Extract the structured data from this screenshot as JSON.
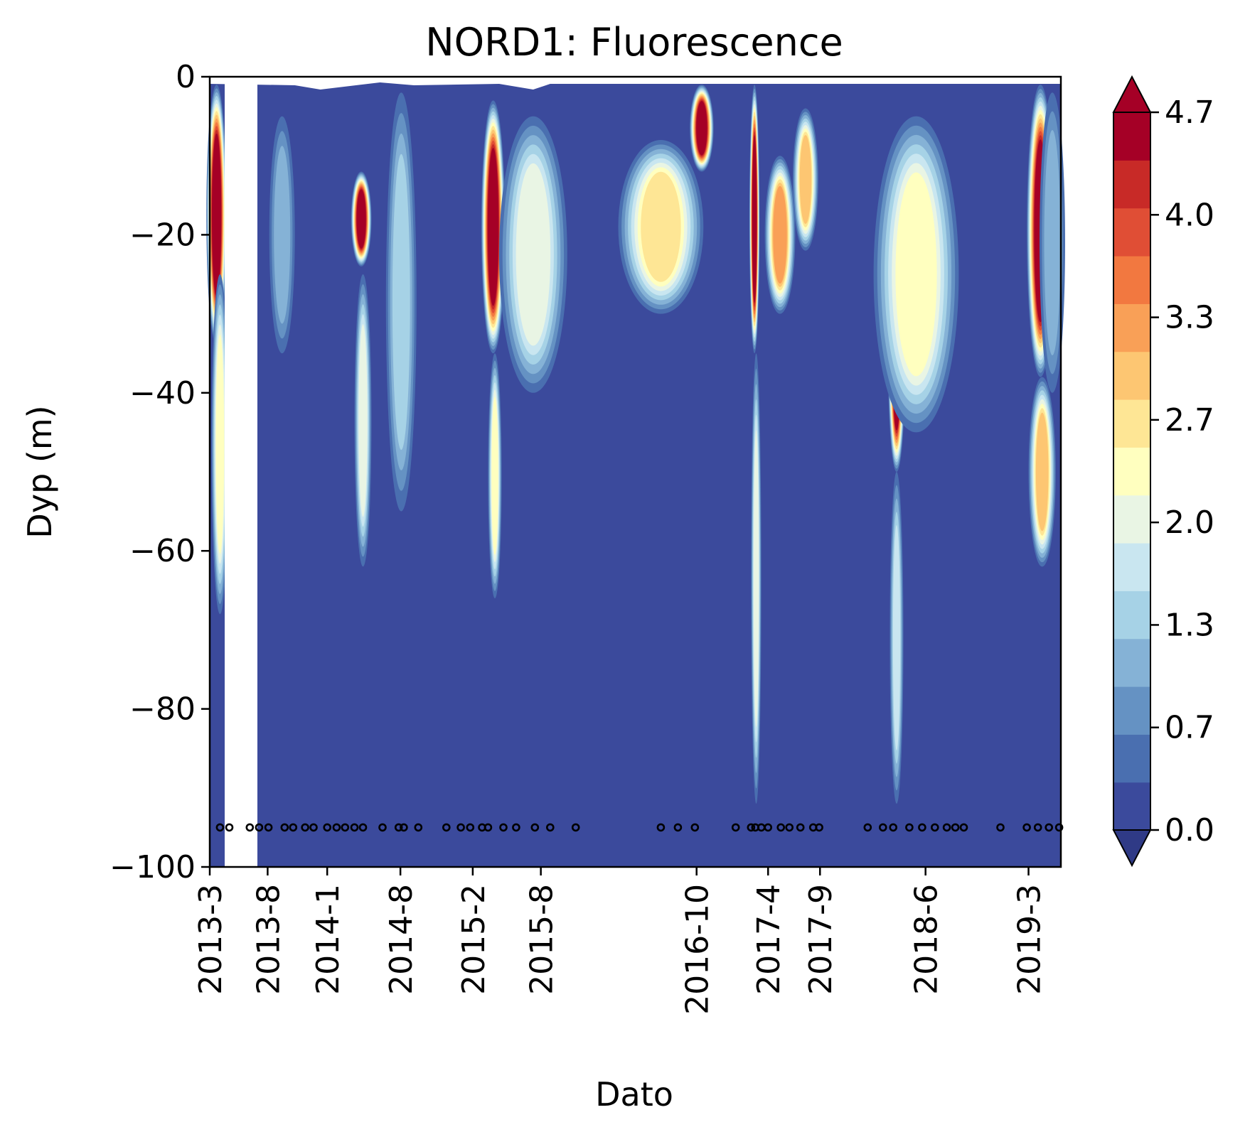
{
  "chart_data": {
    "type": "heatmap",
    "title": "NORD1: Fluorescence",
    "xlabel": "Dato",
    "ylabel": "Dyp (m)",
    "ylim": [
      -100,
      0
    ],
    "y_ticks": [
      0,
      -20,
      -40,
      -60,
      -80,
      -100
    ],
    "x_tick_labels": [
      "2013-3",
      "2013-8",
      "2014-1",
      "2014-8",
      "2015-2",
      "2015-8",
      "2016-10",
      "2017-4",
      "2017-9",
      "2018-6",
      "2019-3"
    ],
    "colorbar": {
      "min": 0.0,
      "max": 4.7,
      "tick_labels": [
        "4.7",
        "4.0",
        "3.3",
        "2.7",
        "2.0",
        "1.3",
        "0.7",
        "0.0"
      ],
      "levels": 15,
      "extend": "both",
      "colormap": "RdYlBu_r",
      "colors": [
        "#3b4a9c",
        "#4a6fb0",
        "#6592c3",
        "#85b2d6",
        "#a6d2e6",
        "#c9e6f0",
        "#e9f5e4",
        "#ffffbf",
        "#fee695",
        "#fdc672",
        "#f9a057",
        "#f27840",
        "#e04e35",
        "#c82a27",
        "#a50026"
      ]
    },
    "sample_depth": -95,
    "sample_dates_fraction": [
      0.012,
      0.023,
      0.047,
      0.058,
      0.069,
      0.088,
      0.098,
      0.112,
      0.122,
      0.138,
      0.149,
      0.159,
      0.17,
      0.18,
      0.203,
      0.222,
      0.228,
      0.245,
      0.278,
      0.295,
      0.306,
      0.32,
      0.327,
      0.345,
      0.36,
      0.382,
      0.4,
      0.43,
      0.53,
      0.55,
      0.57,
      0.618,
      0.636,
      0.641,
      0.648,
      0.656,
      0.671,
      0.681,
      0.694,
      0.709,
      0.716,
      0.773,
      0.791,
      0.803,
      0.822,
      0.837,
      0.852,
      0.866,
      0.876,
      0.886,
      0.929,
      0.96,
      0.973,
      0.986,
      0.998
    ],
    "blooms": [
      {
        "x": 0.008,
        "wx": 0.012,
        "top": -1,
        "bottom": -34,
        "peak": 4.9
      },
      {
        "x": 0.012,
        "wx": 0.01,
        "top": -25,
        "bottom": -68,
        "peak": 2.2
      },
      {
        "x": 0.085,
        "wx": 0.015,
        "top": -5,
        "bottom": -35,
        "peak": 1.1
      },
      {
        "x": 0.178,
        "wx": 0.012,
        "top": -12,
        "bottom": -24,
        "peak": 5.0
      },
      {
        "x": 0.18,
        "wx": 0.01,
        "top": -25,
        "bottom": -62,
        "peak": 2.0
      },
      {
        "x": 0.225,
        "wx": 0.018,
        "top": -2,
        "bottom": -55,
        "peak": 1.3
      },
      {
        "x": 0.333,
        "wx": 0.014,
        "top": -3,
        "bottom": -35,
        "peak": 5.0
      },
      {
        "x": 0.335,
        "wx": 0.008,
        "top": -35,
        "bottom": -66,
        "peak": 2.2
      },
      {
        "x": 0.38,
        "wx": 0.04,
        "top": -5,
        "bottom": -40,
        "peak": 2.0
      },
      {
        "x": 0.53,
        "wx": 0.05,
        "top": -8,
        "bottom": -30,
        "peak": 2.6
      },
      {
        "x": 0.578,
        "wx": 0.014,
        "top": -1,
        "bottom": -12,
        "peak": 4.9
      },
      {
        "x": 0.64,
        "wx": 0.006,
        "top": -1,
        "bottom": -35,
        "peak": 5.0
      },
      {
        "x": 0.642,
        "wx": 0.006,
        "top": -35,
        "bottom": -92,
        "peak": 2.0
      },
      {
        "x": 0.67,
        "wx": 0.018,
        "top": -10,
        "bottom": -30,
        "peak": 3.2
      },
      {
        "x": 0.7,
        "wx": 0.015,
        "top": -4,
        "bottom": -22,
        "peak": 3.0
      },
      {
        "x": 0.807,
        "wx": 0.01,
        "top": -22,
        "bottom": -50,
        "peak": 5.0
      },
      {
        "x": 0.807,
        "wx": 0.008,
        "top": -50,
        "bottom": -92,
        "peak": 1.6
      },
      {
        "x": 0.83,
        "wx": 0.05,
        "top": -5,
        "bottom": -45,
        "peak": 2.4
      },
      {
        "x": 0.976,
        "wx": 0.016,
        "top": -1,
        "bottom": -38,
        "peak": 5.0
      },
      {
        "x": 0.978,
        "wx": 0.016,
        "top": -38,
        "bottom": -62,
        "peak": 3.0
      },
      {
        "x": 0.99,
        "wx": 0.015,
        "top": -2,
        "bottom": -40,
        "peak": 1.2
      }
    ]
  }
}
